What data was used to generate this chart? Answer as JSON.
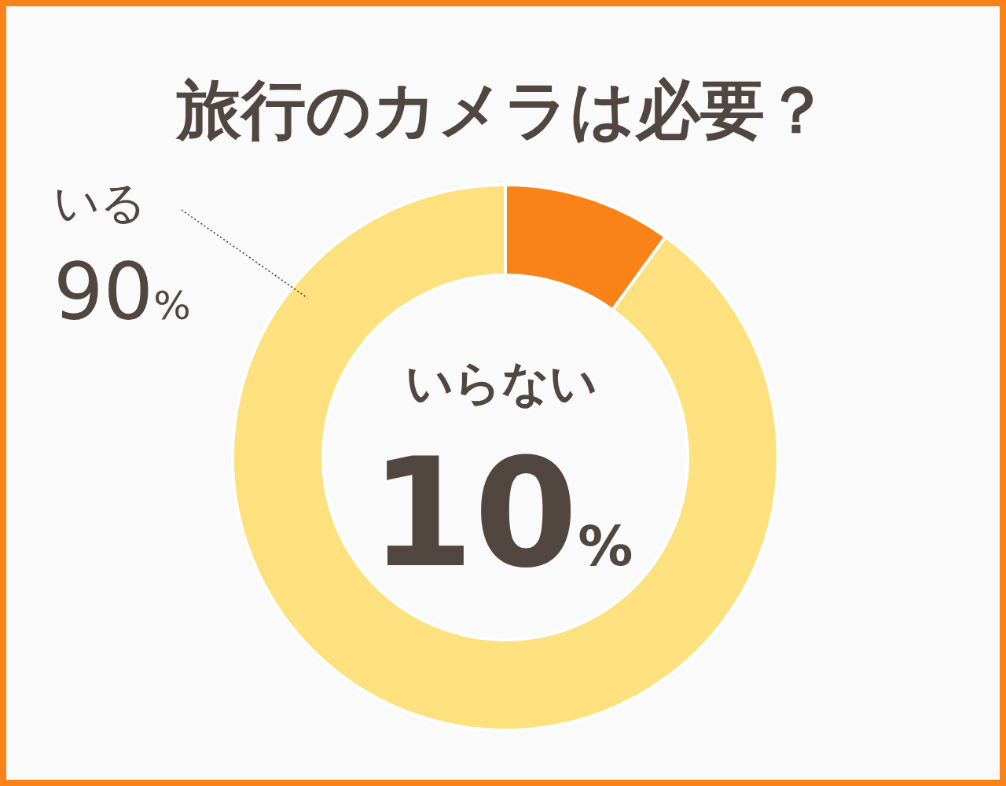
{
  "chart_data": {
    "type": "donut",
    "title": "旅行のカメラは必要？",
    "categories": [
      "いらない",
      "いる"
    ],
    "values": [
      10,
      90
    ],
    "value_labels": [
      "10%",
      "90%"
    ],
    "colors": [
      "#f98219",
      "#fde17e"
    ],
    "legend": false
  }
}
